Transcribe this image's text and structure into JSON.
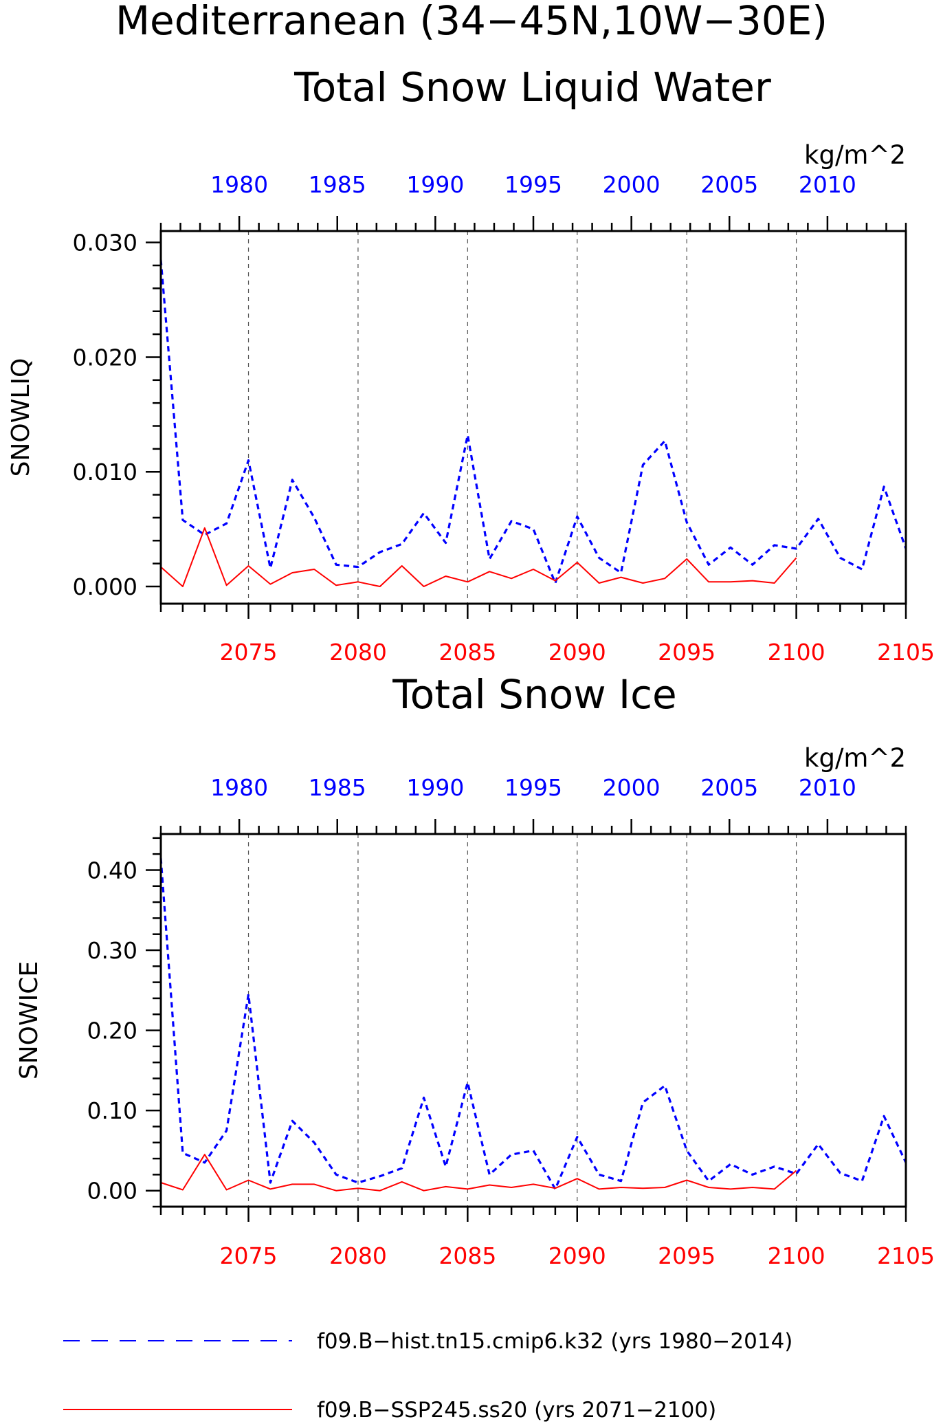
{
  "title_line1": "Mediterranean (34−45N,10W−30E)",
  "chart_data": [
    {
      "type": "line",
      "title": "Total Snow Liquid Water",
      "units": "kg/m^2",
      "ylabel": "SNOWLIQ",
      "ylim": [
        -0.0015,
        0.031
      ],
      "yticks": [
        0.0,
        0.01,
        0.02,
        0.03
      ],
      "ytick_labels": [
        "0.000",
        "0.010",
        "0.020",
        "0.030"
      ],
      "ytick_step_minor": 0.002,
      "top_axis": {
        "color": "#0000ff",
        "range": [
          1976,
          2014
        ],
        "ticks": [
          1980,
          1985,
          1990,
          1995,
          2000,
          2005,
          2010
        ],
        "tick_labels": [
          "1980",
          "1985",
          "1990",
          "1995",
          "2000",
          "2005",
          "2010"
        ]
      },
      "bottom_axis": {
        "color": "#ff0000",
        "range": [
          2071,
          2105
        ],
        "ticks": [
          2075,
          2080,
          2085,
          2090,
          2095,
          2100,
          2105
        ],
        "tick_labels": [
          "2075",
          "2080",
          "2085",
          "2090",
          "2095",
          "2100",
          "2105"
        ]
      },
      "grid": "vertical dashed at bottom-axis ticks",
      "series": [
        {
          "name": "f09.B−hist.tn15.cmip6.k32 (yrs 1980−2014)",
          "color": "#0000ff",
          "style": "dashed",
          "x": [
            2071,
            2072,
            2073,
            2074,
            2075,
            2076,
            2077,
            2078,
            2079,
            2080,
            2081,
            2082,
            2083,
            2084,
            2085,
            2086,
            2087,
            2088,
            2089,
            2090,
            2091,
            2092,
            2093,
            2094,
            2095,
            2096,
            2097,
            2098,
            2099,
            2100,
            2101,
            2102,
            2103,
            2104,
            2105
          ],
          "values": [
            0.0285,
            0.0058,
            0.0045,
            0.0055,
            0.011,
            0.0016,
            0.0093,
            0.006,
            0.0019,
            0.0017,
            0.003,
            0.0037,
            0.0064,
            0.0038,
            0.0132,
            0.0024,
            0.0057,
            0.005,
            0.0003,
            0.0061,
            0.0025,
            0.0012,
            0.0106,
            0.0127,
            0.0056,
            0.0019,
            0.0034,
            0.0019,
            0.0036,
            0.0033,
            0.0059,
            0.0025,
            0.0015,
            0.0087,
            0.0033
          ]
        },
        {
          "name": "f09.B−SSP245.ss20 (yrs 2071−2100)",
          "color": "#ff0000",
          "style": "solid",
          "x": [
            2071,
            2072,
            2073,
            2074,
            2075,
            2076,
            2077,
            2078,
            2079,
            2080,
            2081,
            2082,
            2083,
            2084,
            2085,
            2086,
            2087,
            2088,
            2089,
            2090,
            2091,
            2092,
            2093,
            2094,
            2095,
            2096,
            2097,
            2098,
            2099,
            2100
          ],
          "values": [
            0.0017,
            0.0,
            0.0051,
            0.0001,
            0.0018,
            0.0002,
            0.0012,
            0.0015,
            0.0001,
            0.0004,
            0.0,
            0.0018,
            0.0,
            0.0009,
            0.0004,
            0.0013,
            0.0007,
            0.0015,
            0.0005,
            0.0021,
            0.0003,
            0.0008,
            0.0003,
            0.0007,
            0.0024,
            0.0004,
            0.0004,
            0.0005,
            0.0003,
            0.0025
          ]
        }
      ]
    },
    {
      "type": "line",
      "title": "Total Snow Ice",
      "units": "kg/m^2",
      "ylabel": "SNOWICE",
      "ylim": [
        -0.02,
        0.445
      ],
      "yticks": [
        0.0,
        0.1,
        0.2,
        0.3,
        0.4
      ],
      "ytick_labels": [
        "0.00",
        "0.10",
        "0.20",
        "0.30",
        "0.40"
      ],
      "ytick_step_minor": 0.02,
      "top_axis": {
        "color": "#0000ff",
        "range": [
          1976,
          2014
        ],
        "ticks": [
          1980,
          1985,
          1990,
          1995,
          2000,
          2005,
          2010
        ],
        "tick_labels": [
          "1980",
          "1985",
          "1990",
          "1995",
          "2000",
          "2005",
          "2010"
        ]
      },
      "bottom_axis": {
        "color": "#ff0000",
        "range": [
          2071,
          2105
        ],
        "ticks": [
          2075,
          2080,
          2085,
          2090,
          2095,
          2100,
          2105
        ],
        "tick_labels": [
          "2075",
          "2080",
          "2085",
          "2090",
          "2095",
          "2100",
          "2105"
        ]
      },
      "grid": "vertical dashed at bottom-axis ticks",
      "series": [
        {
          "name": "f09.B−hist.tn15.cmip6.k32 (yrs 1980−2014)",
          "color": "#0000ff",
          "style": "dashed",
          "x": [
            2071,
            2072,
            2073,
            2074,
            2075,
            2076,
            2077,
            2078,
            2079,
            2080,
            2081,
            2082,
            2083,
            2084,
            2085,
            2086,
            2087,
            2088,
            2089,
            2090,
            2091,
            2092,
            2093,
            2094,
            2095,
            2096,
            2097,
            2098,
            2099,
            2100,
            2101,
            2102,
            2103,
            2104,
            2105
          ],
          "values": [
            0.415,
            0.047,
            0.035,
            0.075,
            0.245,
            0.01,
            0.087,
            0.06,
            0.02,
            0.01,
            0.018,
            0.028,
            0.116,
            0.03,
            0.135,
            0.02,
            0.045,
            0.05,
            0.002,
            0.067,
            0.02,
            0.012,
            0.11,
            0.131,
            0.05,
            0.012,
            0.033,
            0.02,
            0.03,
            0.021,
            0.058,
            0.022,
            0.012,
            0.093,
            0.035
          ]
        },
        {
          "name": "f09.B−SSP245.ss20 (yrs 2071−2100)",
          "color": "#ff0000",
          "style": "solid",
          "x": [
            2071,
            2072,
            2073,
            2074,
            2075,
            2076,
            2077,
            2078,
            2079,
            2080,
            2081,
            2082,
            2083,
            2084,
            2085,
            2086,
            2087,
            2088,
            2089,
            2090,
            2091,
            2092,
            2093,
            2094,
            2095,
            2096,
            2097,
            2098,
            2099,
            2100
          ],
          "values": [
            0.01,
            0.001,
            0.045,
            0.001,
            0.013,
            0.002,
            0.008,
            0.008,
            0.0,
            0.003,
            0.0,
            0.011,
            0.0,
            0.005,
            0.002,
            0.007,
            0.004,
            0.008,
            0.003,
            0.015,
            0.002,
            0.004,
            0.003,
            0.004,
            0.013,
            0.004,
            0.002,
            0.004,
            0.002,
            0.025
          ]
        }
      ]
    }
  ],
  "legend": [
    {
      "label": "f09.B−hist.tn15.cmip6.k32 (yrs 1980−2014)",
      "color": "#0000ff",
      "style": "dashed"
    },
    {
      "label": "f09.B−SSP245.ss20 (yrs 2071−2100)",
      "color": "#ff0000",
      "style": "solid"
    }
  ]
}
